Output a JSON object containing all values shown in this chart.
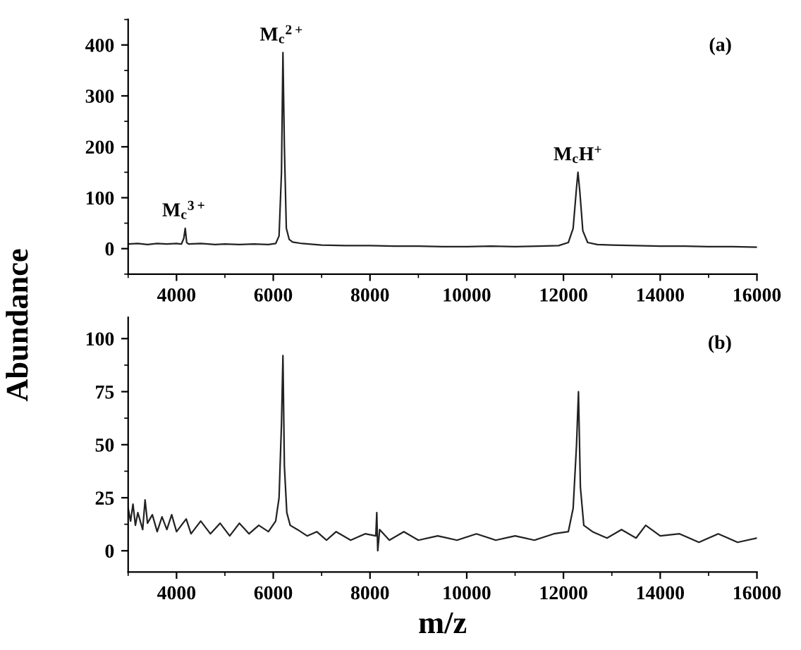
{
  "chart_data": [
    {
      "type": "line",
      "ylabel": "Abundance",
      "xlim": [
        3000,
        16000
      ],
      "xticks": [
        4000,
        6000,
        8000,
        10000,
        12000,
        14000,
        16000
      ],
      "ylim": [
        -50,
        450
      ],
      "yticks": [
        0,
        100,
        200,
        300,
        400
      ],
      "grid": false,
      "legend": false,
      "marker": "none",
      "line_style": "solid",
      "annotations": [
        "(a)",
        {
          "text": "M$_{c}$$^{3+}$",
          "x": 4180,
          "y": 40
        },
        {
          "text": "M$_{c}$$^{2+}$",
          "x": 6200,
          "y": 385
        },
        {
          "text": "M$_{c}$H$^{+}$",
          "x": 12300,
          "y": 150
        }
      ],
      "series": [
        {
          "color": "#222222",
          "x": [
            3000,
            3200,
            3400,
            3600,
            3800,
            4000,
            4100,
            4150,
            4180,
            4210,
            4250,
            4500,
            4800,
            5000,
            5300,
            5600,
            5900,
            6050,
            6120,
            6170,
            6200,
            6230,
            6270,
            6330,
            6400,
            6600,
            7000,
            7500,
            8000,
            8500,
            9000,
            9500,
            10000,
            10500,
            11000,
            11500,
            11900,
            12100,
            12200,
            12270,
            12300,
            12340,
            12400,
            12500,
            12700,
            13000,
            13500,
            14000,
            14500,
            15000,
            15500,
            16000
          ],
          "values": [
            9,
            10,
            8,
            10,
            9,
            10,
            9,
            20,
            40,
            12,
            9,
            10,
            8,
            9,
            8,
            9,
            8,
            10,
            25,
            150,
            385,
            200,
            40,
            18,
            13,
            10,
            7,
            6,
            6,
            5,
            5,
            4,
            4,
            5,
            4,
            5,
            6,
            12,
            40,
            120,
            150,
            110,
            35,
            12,
            8,
            7,
            6,
            5,
            5,
            4,
            4,
            3
          ]
        }
      ]
    },
    {
      "type": "line",
      "xlabel": "m/z",
      "xlim": [
        3000,
        16000
      ],
      "xticks": [
        4000,
        6000,
        8000,
        10000,
        12000,
        14000,
        16000
      ],
      "ylim": [
        -10,
        110
      ],
      "yticks": [
        0,
        25,
        50,
        75,
        100
      ],
      "grid": false,
      "legend": false,
      "marker": "none",
      "line_style": "solid",
      "annotations": [
        "(b)"
      ],
      "series": [
        {
          "color": "#222222",
          "x": [
            3000,
            3050,
            3100,
            3150,
            3200,
            3300,
            3350,
            3400,
            3500,
            3600,
            3700,
            3800,
            3900,
            4000,
            4200,
            4300,
            4500,
            4700,
            4900,
            5100,
            5300,
            5500,
            5700,
            5900,
            6050,
            6120,
            6170,
            6200,
            6230,
            6280,
            6350,
            6500,
            6700,
            6900,
            7100,
            7300,
            7600,
            7900,
            8120,
            8140,
            8160,
            8200,
            8400,
            8700,
            9000,
            9400,
            9800,
            10200,
            10600,
            11000,
            11400,
            11800,
            12100,
            12200,
            12270,
            12310,
            12350,
            12420,
            12600,
            12900,
            13200,
            13500,
            13700,
            14000,
            14400,
            14800,
            15200,
            15600,
            16000
          ],
          "values": [
            20,
            14,
            22,
            12,
            18,
            10,
            24,
            13,
            17,
            9,
            16,
            10,
            17,
            9,
            15,
            8,
            14,
            8,
            13,
            7,
            13,
            8,
            12,
            9,
            14,
            25,
            60,
            92,
            40,
            18,
            12,
            10,
            7,
            9,
            5,
            9,
            5,
            8,
            7,
            18,
            0,
            10,
            5,
            9,
            5,
            7,
            5,
            8,
            5,
            7,
            5,
            8,
            9,
            20,
            50,
            75,
            30,
            12,
            9,
            6,
            10,
            6,
            12,
            7,
            8,
            4,
            8,
            4,
            6
          ]
        }
      ]
    }
  ]
}
